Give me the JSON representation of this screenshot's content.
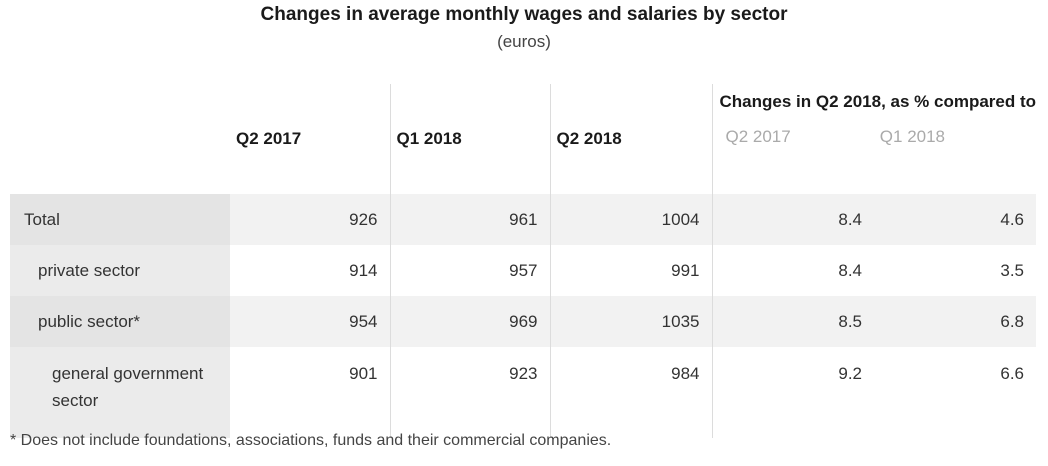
{
  "title": "Changes in average monthly wages and salaries by sector",
  "subtitle": "(euros)",
  "headers": {
    "col1": "Q2 2017",
    "col2": "Q1 2018",
    "col3": "Q2 2018",
    "changes": "Changes in Q2 2018, as % compared to",
    "changes_vs_q2_2017": "Q2 2017",
    "changes_vs_q1_2018": "Q1 2018"
  },
  "rows": [
    {
      "label": "Total",
      "q2_2017": "926",
      "q1_2018": "961",
      "q2_2018": "1004",
      "chg_q2_2017": "8.4",
      "chg_q1_2018": "4.6"
    },
    {
      "label": "private sector",
      "q2_2017": "914",
      "q1_2018": "957",
      "q2_2018": "991",
      "chg_q2_2017": "8.4",
      "chg_q1_2018": "3.5"
    },
    {
      "label": "public sector*",
      "q2_2017": "954",
      "q1_2018": "969",
      "q2_2018": "1035",
      "chg_q2_2017": "8.5",
      "chg_q1_2018": "6.8"
    },
    {
      "label": "general government sector",
      "q2_2017": "901",
      "q1_2018": "923",
      "q2_2018": "984",
      "chg_q2_2017": "9.2",
      "chg_q1_2018": "6.6"
    }
  ],
  "footnote": "* Does not include foundations, associations, funds and their commercial companies."
}
